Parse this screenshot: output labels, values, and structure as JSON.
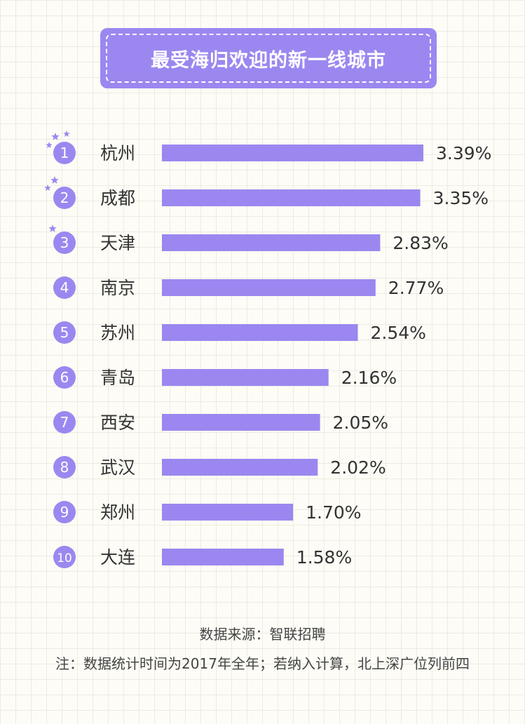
{
  "title": "最受海归欢迎的新一线城市",
  "source": "数据来源：智联招聘",
  "remark": "注：数据统计时间为2017年全年；若纳入计算，北上深广位列前四",
  "colors": {
    "bar": "#9c87f0",
    "badge": "#9c87f0",
    "text": "#333333",
    "background": "#fdfcf6"
  },
  "chart_data": {
    "type": "bar",
    "orientation": "horizontal",
    "title": "最受海归欢迎的新一线城市",
    "unit": "%",
    "grid": false,
    "legend": "none",
    "xlim": [
      0,
      3.39
    ],
    "categories": [
      "杭州",
      "成都",
      "天津",
      "南京",
      "苏州",
      "青岛",
      "西安",
      "武汉",
      "郑州",
      "大连"
    ],
    "ranks": [
      "1",
      "2",
      "3",
      "4",
      "5",
      "6",
      "7",
      "8",
      "9",
      "10"
    ],
    "values": [
      3.39,
      3.35,
      2.83,
      2.77,
      2.54,
      2.16,
      2.05,
      2.02,
      1.7,
      1.58
    ],
    "value_labels": [
      "3.39%",
      "3.35%",
      "2.83%",
      "2.77%",
      "2.54%",
      "2.16%",
      "2.05%",
      "2.02%",
      "1.70%",
      "1.58%"
    ],
    "star_counts": [
      3,
      2,
      1,
      0,
      0,
      0,
      0,
      0,
      0,
      0
    ]
  }
}
